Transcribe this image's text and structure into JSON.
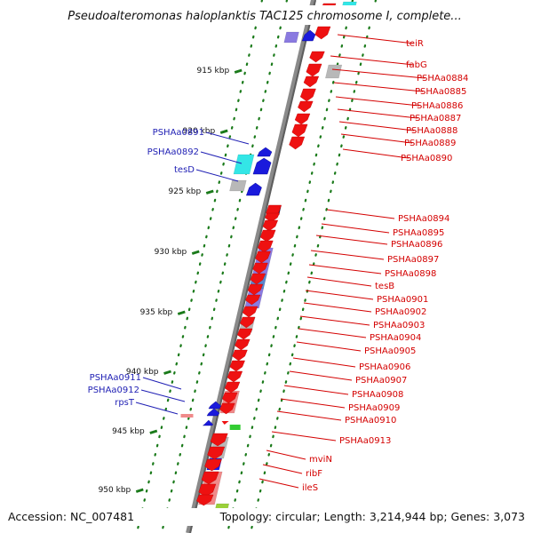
{
  "title": "Pseudoalteromonas haloplanktis TAC125 chromosome I, complete...",
  "footer": {
    "accession": "Accession: NC_007481",
    "topology": "Topology: circular; Length: 3,214,944 bp; Genes: 3,073"
  },
  "kbp_ticks": [
    "915 kbp",
    "920 kbp",
    "925 kbp",
    "930 kbp",
    "935 kbp",
    "940 kbp",
    "945 kbp",
    "950 kbp"
  ],
  "forward_labels": [
    "PSHAa0891",
    "PSHAa0892",
    "tesD",
    "PSHAa0911",
    "PSHAa0912",
    "rpsT"
  ],
  "reverse_labels": [
    "teiR",
    "fabG",
    "PSHAa0884",
    "PSHAa0885",
    "PSHAa0886",
    "PSHAa0887",
    "PSHAa0888",
    "PSHAa0889",
    "PSHAa0890",
    "PSHAa0894",
    "PSHAa0895",
    "PSHAa0896",
    "PSHAa0897",
    "PSHAa0898",
    "tesB",
    "PSHAa0901",
    "PSHAa0902",
    "PSHAa0903",
    "PSHAa0904",
    "PSHAa0905",
    "PSHAa0906",
    "PSHAa0907",
    "PSHAa0908",
    "PSHAa0909",
    "PSHAa0910",
    "PSHAa0913",
    "mviN",
    "ribF",
    "ileS"
  ],
  "colors": {
    "forward_gene": "#1a1adc",
    "reverse_gene": "#ee1111",
    "forward_label": "#1f1fb4",
    "reverse_label": "#d40000",
    "backbone": "#7a7a7a",
    "tick": "#1a7a1a",
    "cog_bar_cyan": "#33e6e6",
    "cog_bar_purple": "#8a7ae0",
    "cog_bar_gray": "#b8b8b8",
    "cog_bar_pink": "#f08a8a",
    "cog_bar_blue": "#5a86cc"
  }
}
